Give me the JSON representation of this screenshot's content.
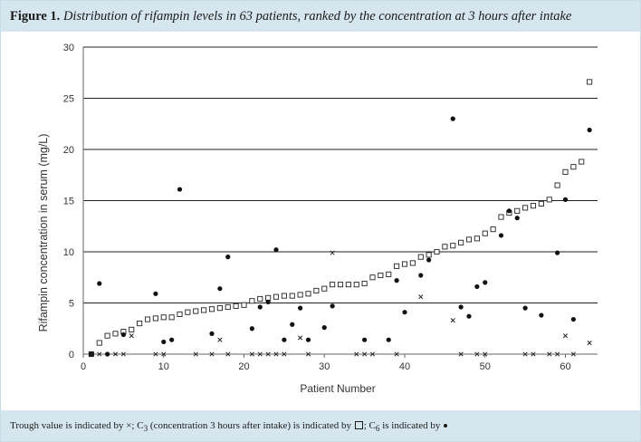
{
  "figure": {
    "label": "Figure 1.",
    "caption": "Distribution of rifampin levels in 63 patients, ranked by the concentration at 3 hours after intake"
  },
  "footnote": {
    "trough_text": "Trough value is indicated by ×; C",
    "c3_sub": "3",
    "c3_text": " (concentration 3 hours after intake) is indicated by ",
    "c6_text": "; C",
    "c6_sub": "6",
    "c6_tail": " is indicated by "
  },
  "chart_data": {
    "type": "scatter",
    "xlabel": "Patient Number",
    "ylabel": "Rifampin concentration in serum (mg/L)",
    "xlim": [
      0,
      64
    ],
    "ylim": [
      0,
      30
    ],
    "x_ticks": [
      0,
      10,
      20,
      30,
      40,
      50,
      60
    ],
    "y_ticks": [
      0,
      5,
      10,
      15,
      20,
      25,
      30
    ],
    "grid": "horizontal",
    "series": [
      {
        "marker": "square",
        "points": [
          [
            1,
            0
          ],
          [
            2,
            1.1
          ],
          [
            3,
            1.8
          ],
          [
            4,
            2.0
          ],
          [
            5,
            2.2
          ],
          [
            6,
            2.4
          ],
          [
            7,
            3.0
          ],
          [
            8,
            3.4
          ],
          [
            9,
            3.5
          ],
          [
            10,
            3.6
          ],
          [
            11,
            3.6
          ],
          [
            12,
            3.9
          ],
          [
            13,
            4.1
          ],
          [
            14,
            4.2
          ],
          [
            15,
            4.3
          ],
          [
            16,
            4.4
          ],
          [
            17,
            4.5
          ],
          [
            18,
            4.6
          ],
          [
            19,
            4.7
          ],
          [
            20,
            4.8
          ],
          [
            21,
            5.2
          ],
          [
            22,
            5.4
          ],
          [
            23,
            5.5
          ],
          [
            24,
            5.6
          ],
          [
            25,
            5.7
          ],
          [
            26,
            5.7
          ],
          [
            27,
            5.8
          ],
          [
            28,
            5.9
          ],
          [
            29,
            6.2
          ],
          [
            30,
            6.4
          ],
          [
            31,
            6.8
          ],
          [
            32,
            6.8
          ],
          [
            33,
            6.8
          ],
          [
            34,
            6.8
          ],
          [
            35,
            6.9
          ],
          [
            36,
            7.5
          ],
          [
            37,
            7.7
          ],
          [
            38,
            7.8
          ],
          [
            39,
            8.6
          ],
          [
            40,
            8.8
          ],
          [
            41,
            8.9
          ],
          [
            42,
            9.5
          ],
          [
            43,
            9.7
          ],
          [
            44,
            10.0
          ],
          [
            45,
            10.5
          ],
          [
            46,
            10.6
          ],
          [
            47,
            10.9
          ],
          [
            48,
            11.2
          ],
          [
            49,
            11.3
          ],
          [
            50,
            11.8
          ],
          [
            51,
            12.2
          ],
          [
            52,
            13.4
          ],
          [
            53,
            13.8
          ],
          [
            54,
            14.0
          ],
          [
            55,
            14.3
          ],
          [
            56,
            14.5
          ],
          [
            57,
            14.7
          ],
          [
            58,
            15.1
          ],
          [
            59,
            16.5
          ],
          [
            60,
            17.8
          ],
          [
            61,
            18.3
          ],
          [
            62,
            18.8
          ],
          [
            63,
            26.6
          ]
        ]
      },
      {
        "marker": "dot",
        "points": [
          [
            1,
            0
          ],
          [
            2,
            6.9
          ],
          [
            3,
            0
          ],
          [
            5,
            1.9
          ],
          [
            9,
            5.9
          ],
          [
            10,
            1.2
          ],
          [
            11,
            1.4
          ],
          [
            12,
            16.1
          ],
          [
            16,
            2.0
          ],
          [
            17,
            6.4
          ],
          [
            18,
            9.5
          ],
          [
            21,
            2.5
          ],
          [
            22,
            4.6
          ],
          [
            23,
            5.1
          ],
          [
            24,
            10.2
          ],
          [
            25,
            1.4
          ],
          [
            26,
            2.9
          ],
          [
            27,
            4.5
          ],
          [
            28,
            1.4
          ],
          [
            30,
            2.6
          ],
          [
            31,
            4.7
          ],
          [
            35,
            1.4
          ],
          [
            38,
            1.4
          ],
          [
            39,
            7.2
          ],
          [
            40,
            4.1
          ],
          [
            42,
            7.7
          ],
          [
            43,
            9.2
          ],
          [
            46,
            23.0
          ],
          [
            47,
            4.6
          ],
          [
            48,
            3.7
          ],
          [
            49,
            6.6
          ],
          [
            50,
            7.0
          ],
          [
            52,
            11.6
          ],
          [
            53,
            14.0
          ],
          [
            54,
            13.3
          ],
          [
            55,
            4.5
          ],
          [
            57,
            3.8
          ],
          [
            59,
            9.9
          ],
          [
            60,
            15.1
          ],
          [
            61,
            3.4
          ],
          [
            63,
            21.9
          ]
        ]
      },
      {
        "marker": "cross",
        "points": [
          [
            1,
            0
          ],
          [
            2,
            0
          ],
          [
            4,
            0
          ],
          [
            5,
            0
          ],
          [
            6,
            1.8
          ],
          [
            9,
            0
          ],
          [
            10,
            0
          ],
          [
            14,
            0
          ],
          [
            16,
            0
          ],
          [
            17,
            1.4
          ],
          [
            18,
            0
          ],
          [
            21,
            0
          ],
          [
            22,
            0
          ],
          [
            23,
            0
          ],
          [
            24,
            0
          ],
          [
            25,
            0
          ],
          [
            27,
            1.6
          ],
          [
            28,
            0
          ],
          [
            31,
            9.9
          ],
          [
            34,
            0
          ],
          [
            35,
            0
          ],
          [
            36,
            0
          ],
          [
            39,
            0
          ],
          [
            42,
            5.6
          ],
          [
            46,
            3.3
          ],
          [
            47,
            0
          ],
          [
            49,
            0
          ],
          [
            50,
            0
          ],
          [
            55,
            0
          ],
          [
            56,
            0
          ],
          [
            58,
            0
          ],
          [
            59,
            0
          ],
          [
            60,
            1.8
          ],
          [
            61,
            0
          ],
          [
            63,
            1.1
          ]
        ]
      }
    ]
  }
}
